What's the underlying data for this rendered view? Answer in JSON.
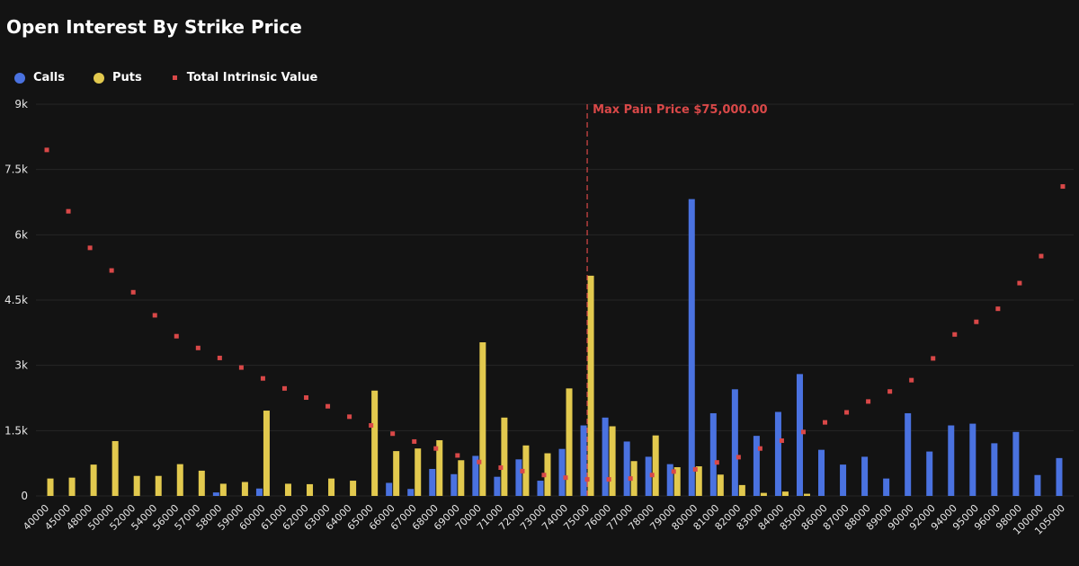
{
  "header": {
    "title": "Open Interest By Strike Price"
  },
  "legend": {
    "calls": "Calls",
    "puts": "Puts",
    "intrinsic": "Total Intrinsic Value"
  },
  "colors": {
    "background": "#131313",
    "calls": "#4a72e0",
    "puts": "#e2c94e",
    "intrinsic": "#d94848",
    "max_pain": "#d94848",
    "grid": "#262626",
    "axis_text": "#e6e6e6"
  },
  "chart_data": {
    "type": "bar",
    "title": "Open Interest By Strike Price",
    "xlabel": "",
    "ylabel": "",
    "ylim": [
      0,
      9000
    ],
    "yticks": [
      {
        "value": 0,
        "label": "0"
      },
      {
        "value": 1500,
        "label": "1.5k"
      },
      {
        "value": 3000,
        "label": "3k"
      },
      {
        "value": 4500,
        "label": "4.5k"
      },
      {
        "value": 6000,
        "label": "6k"
      },
      {
        "value": 7500,
        "label": "7.5k"
      },
      {
        "value": 9000,
        "label": "9k"
      }
    ],
    "grid": true,
    "legend_position": "top-left",
    "categories": [
      "40000",
      "45000",
      "48000",
      "50000",
      "52000",
      "54000",
      "56000",
      "57000",
      "58000",
      "59000",
      "60000",
      "61000",
      "62000",
      "63000",
      "64000",
      "65000",
      "66000",
      "67000",
      "68000",
      "69000",
      "70000",
      "71000",
      "72000",
      "73000",
      "74000",
      "75000",
      "76000",
      "77000",
      "78000",
      "79000",
      "80000",
      "81000",
      "82000",
      "83000",
      "84000",
      "85000",
      "86000",
      "87000",
      "88000",
      "89000",
      "90000",
      "92000",
      "94000",
      "95000",
      "96000",
      "98000",
      "100000",
      "105000"
    ],
    "series": [
      {
        "name": "Calls",
        "kind": "bar",
        "values": [
          0,
          0,
          0,
          0,
          0,
          0,
          0,
          0,
          80,
          0,
          170,
          0,
          0,
          0,
          0,
          0,
          300,
          160,
          620,
          500,
          920,
          440,
          840,
          350,
          1080,
          1620,
          1800,
          1250,
          900,
          730,
          6820,
          1900,
          2450,
          1380,
          1930,
          2800,
          1060,
          720,
          900,
          400,
          1900,
          1020,
          1620,
          1660,
          1210,
          1470,
          480,
          870
        ]
      },
      {
        "name": "Puts",
        "kind": "bar",
        "values": [
          400,
          420,
          720,
          1260,
          460,
          460,
          730,
          580,
          280,
          320,
          1960,
          280,
          270,
          400,
          350,
          2420,
          1030,
          1090,
          1280,
          820,
          3530,
          1800,
          1160,
          980,
          2470,
          5060,
          1600,
          800,
          1390,
          660,
          680,
          490,
          250,
          70,
          100,
          50,
          0,
          0,
          0,
          0,
          0,
          0,
          0,
          0,
          0,
          0,
          0,
          0
        ]
      },
      {
        "name": "Total Intrinsic Value",
        "kind": "scatter",
        "values": [
          7950,
          6540,
          5700,
          5180,
          4680,
          4150,
          3670,
          3400,
          3170,
          2950,
          2700,
          2470,
          2260,
          2060,
          1820,
          1620,
          1430,
          1250,
          1090,
          930,
          780,
          650,
          570,
          480,
          420,
          380,
          380,
          400,
          480,
          560,
          610,
          770,
          890,
          1090,
          1270,
          1470,
          1690,
          1920,
          2170,
          2400,
          2660,
          3160,
          3710,
          4000,
          4300,
          4890,
          5510,
          7110
        ]
      }
    ],
    "annotations": [
      {
        "type": "vline",
        "x": "75000",
        "label": "Max Pain Price $75,000.00"
      }
    ]
  }
}
